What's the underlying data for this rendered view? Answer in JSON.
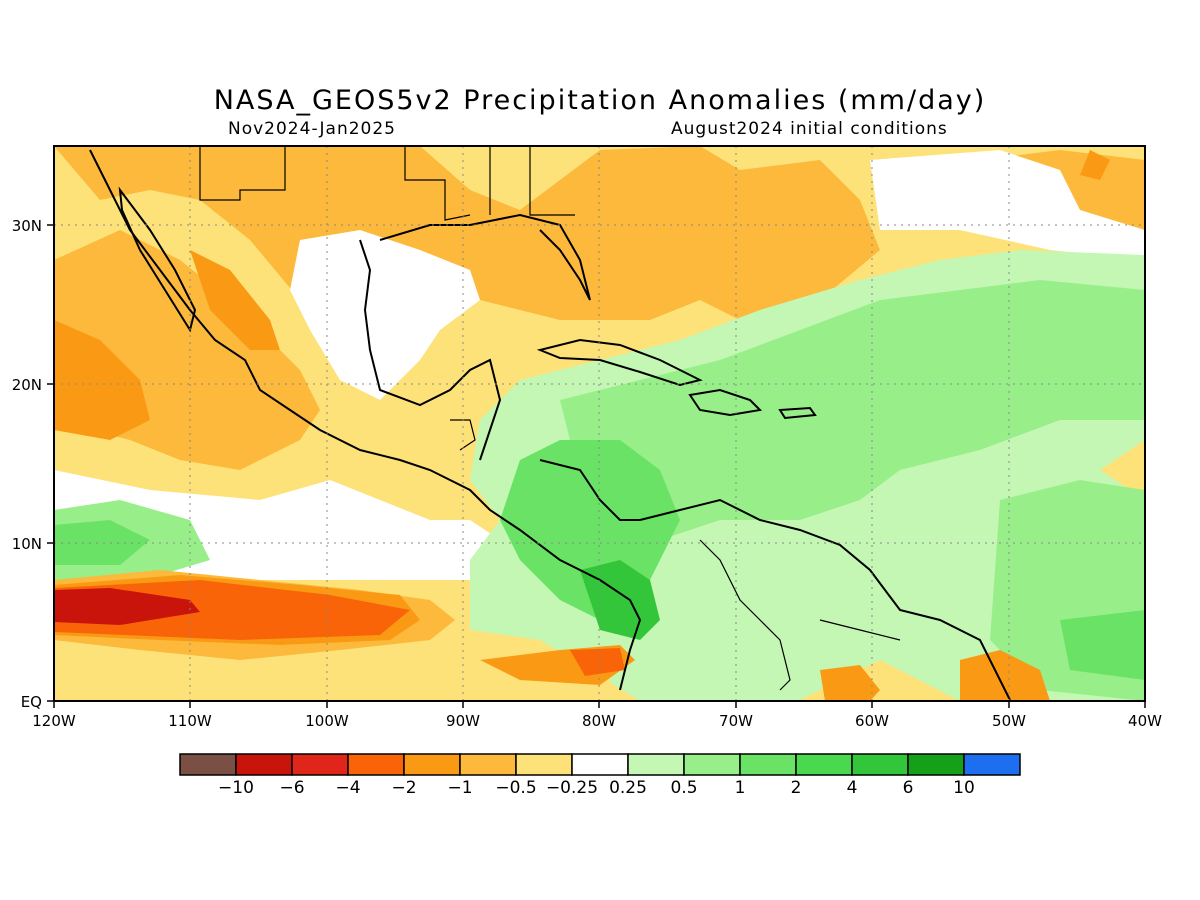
{
  "title": "NASA_GEOS5v2 Precipitation Anomalies (mm/day)",
  "subtitle_left": "Nov2024-Jan2025",
  "subtitle_right": "August2024 initial conditions",
  "map": {
    "region": "Central America, Caribbean and Gulf of Mexico",
    "lon_range": [
      -120,
      -40
    ],
    "lat_range": [
      0,
      35
    ],
    "x_tick_labels": [
      "120W",
      "110W",
      "100W",
      "90W",
      "80W",
      "70W",
      "60W",
      "50W",
      "40W"
    ],
    "y_tick_labels": [
      "EQ",
      "10N",
      "20N",
      "30N"
    ],
    "grid": "dotted"
  },
  "colorbar": {
    "labels": [
      "-10",
      "-6",
      "-4",
      "-2",
      "-1",
      "-0.5",
      "-0.25",
      "0.25",
      "0.5",
      "1",
      "2",
      "4",
      "6",
      "10"
    ],
    "colors": [
      "#7a5044",
      "#c8140a",
      "#e0261a",
      "#fa6408",
      "#fa9a14",
      "#fcb93c",
      "#fde27a",
      "#ffffff",
      "#c4f7b4",
      "#98ef8a",
      "#6ae265",
      "#4ad94e",
      "#34c63a",
      "#14a018",
      "#1e6ef0"
    ]
  }
}
